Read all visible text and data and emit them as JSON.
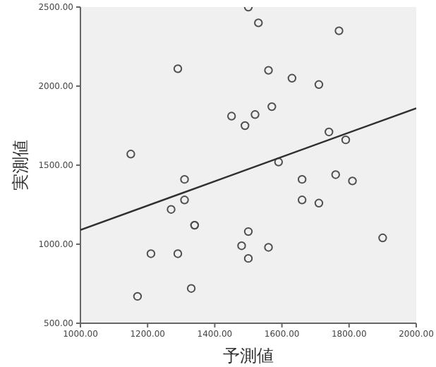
{
  "chart_data": {
    "type": "scatter",
    "xlabel": "予測値",
    "ylabel": "実測値",
    "marker": "circle",
    "grid": false,
    "xlim": [
      1000,
      2000
    ],
    "ylim": [
      500,
      2500
    ],
    "xticks": [
      {
        "value": 1000,
        "label": "1000.00"
      },
      {
        "value": 1200,
        "label": "1200.00"
      },
      {
        "value": 1400,
        "label": "1400.00"
      },
      {
        "value": 1600,
        "label": "1600.00"
      },
      {
        "value": 1800,
        "label": "1800.00"
      },
      {
        "value": 2000,
        "label": "2000.00"
      }
    ],
    "yticks": [
      {
        "value": 500,
        "label": "500.00"
      },
      {
        "value": 1000,
        "label": "1000.00"
      },
      {
        "value": 1500,
        "label": "1500.00"
      },
      {
        "value": 2000,
        "label": "2000.00"
      },
      {
        "value": 2500,
        "label": "2500.00"
      }
    ],
    "series": [
      {
        "color": "#505050",
        "x": [
          1500,
          1530,
          1770,
          1290,
          1560,
          1630,
          1710,
          1570,
          1450,
          1520,
          1490,
          1740,
          1790,
          1150,
          1590,
          1760,
          1310,
          1660,
          1810,
          1310,
          1270,
          1660,
          1710,
          1340,
          1340,
          1500,
          1900,
          1480,
          1560,
          1210,
          1290,
          1500,
          1330,
          1170
        ],
        "values": [
          2500,
          2400,
          2350,
          2110,
          2100,
          2050,
          2010,
          1870,
          1810,
          1820,
          1750,
          1710,
          1660,
          1570,
          1520,
          1440,
          1410,
          1410,
          1400,
          1280,
          1220,
          1280,
          1260,
          1120,
          1120,
          1080,
          1040,
          990,
          980,
          940,
          940,
          910,
          720,
          670
        ]
      },
      {
        "type": "line",
        "marker": "none",
        "color": "#303030",
        "x": [
          1000,
          2000
        ],
        "values": [
          1090,
          1860
        ]
      }
    ]
  }
}
